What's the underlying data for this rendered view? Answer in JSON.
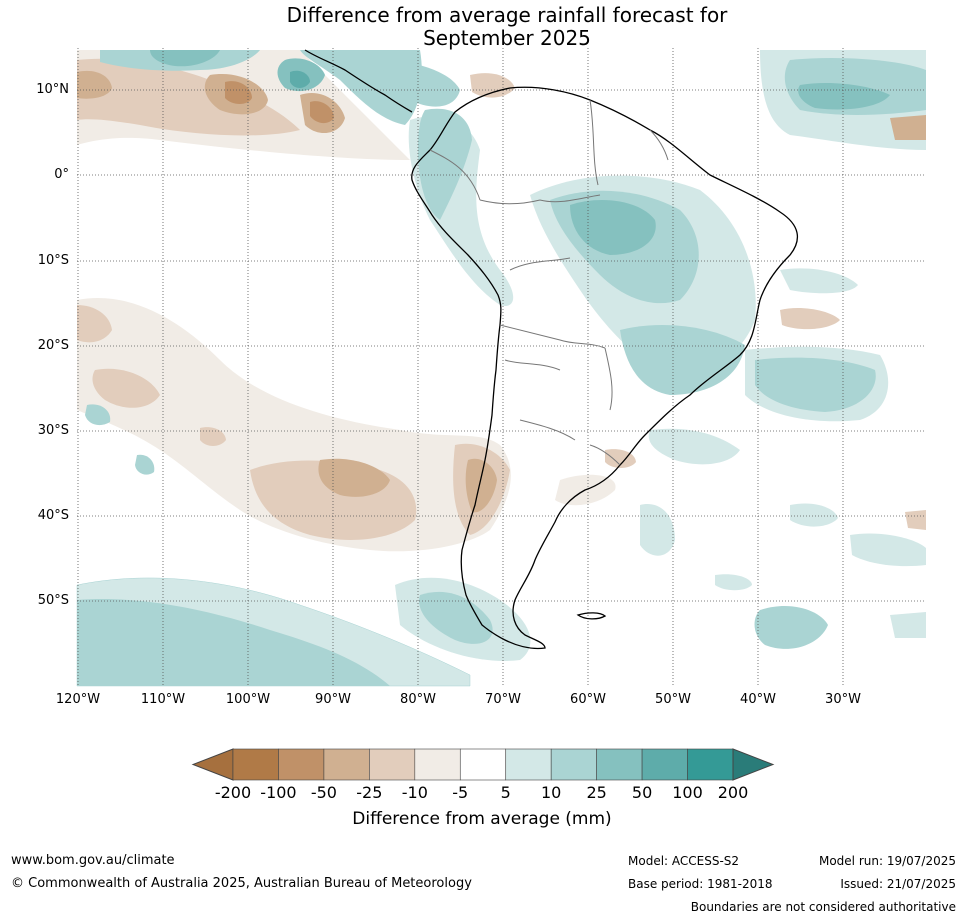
{
  "title": {
    "line1": "Difference from average rainfall forecast for",
    "line2": "September 2025"
  },
  "map": {
    "lat_labels": [
      "10°N",
      "0°",
      "10°S",
      "20°S",
      "30°S",
      "40°S",
      "50°S"
    ],
    "lon_labels": [
      "120°W",
      "110°W",
      "100°W",
      "90°W",
      "80°W",
      "70°W",
      "60°W",
      "50°W",
      "40°W",
      "30°W"
    ],
    "colors": {
      "dry_100_200": "#b07a47",
      "dry_50_100": "#c09168",
      "dry_25_50": "#d0b091",
      "dry_10_25": "#e2cdbc",
      "dry_5_10": "#f1ece6",
      "wet_5_10": "#d3e8e7",
      "wet_10_25": "#aad4d3",
      "wet_25_50": "#85c1bf",
      "wet_50_100": "#5eacaa",
      "wet_100_200": "#349a96"
    }
  },
  "colorbar": {
    "title": "Difference from average (mm)",
    "labels": [
      "-200",
      "-100",
      "-50",
      "-25",
      "-10",
      "-5",
      "5",
      "10",
      "25",
      "50",
      "100",
      "200"
    ],
    "colors": [
      "#a6703e",
      "#b07a47",
      "#c09168",
      "#d0b091",
      "#e2cdbc",
      "#f1ece6",
      "#ffffff",
      "#d3e8e7",
      "#aad4d3",
      "#85c1bf",
      "#5eacaa",
      "#349a96",
      "#2a7c79"
    ]
  },
  "footer": {
    "website": "www.bom.gov.au/climate",
    "copyright": "© Commonwealth of Australia 2025, Australian Bureau of Meteorology",
    "model": "Model: ACCESS-S2",
    "base_period": "Base period: 1981-2018",
    "model_run": "Model run: 19/07/2025",
    "issued": "Issued: 21/07/2025",
    "disclaimer": "Boundaries are not considered authoritative"
  }
}
